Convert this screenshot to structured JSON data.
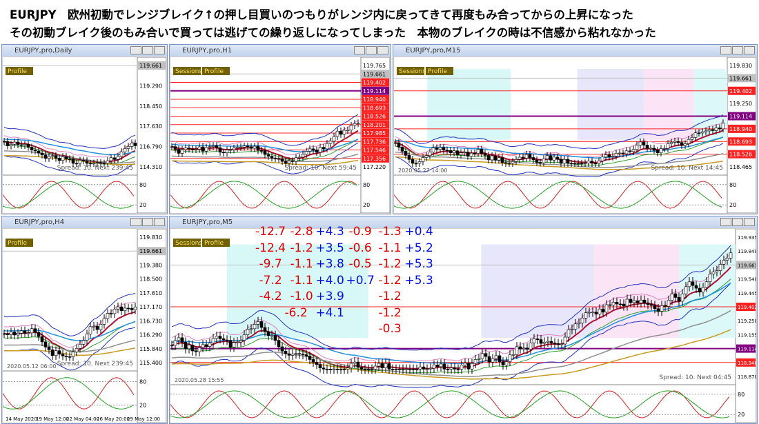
{
  "header": {
    "lines": [
      "EURJPY　欧州初動でレンジブレイク↑の押し目買いのつもりがレンジ内に戻ってきて再度もみ合ってからの上昇になった",
      "その初動ブレイク後のもみ合いで買っては逃げての繰り返しになってしまった　本物のブレイクの時は不信感から粘れなかった"
    ]
  },
  "windows": [
    {
      "title": "EURJPY,pro,Daily",
      "buttons": [
        "Profile"
      ],
      "prices": [
        {
          "text": "119.661",
          "style": "current"
        },
        {
          "text": "119.290"
        },
        {
          "text": "118.450"
        },
        {
          "text": "117.630"
        },
        {
          "text": "116.790"
        },
        {
          "text": "114.310"
        }
      ],
      "spread": "Spread: 10. Next 239:45",
      "levels": [
        "80",
        "20"
      ]
    },
    {
      "title": "EURJPY,pro,H1",
      "buttons": [
        "Sessions",
        "Profile"
      ],
      "prices": [
        {
          "text": "119.765"
        },
        {
          "text": "119.661",
          "style": "current"
        },
        {
          "text": "119.402",
          "style": "red"
        },
        {
          "text": "119.114",
          "style": "purple"
        },
        {
          "text": "118.940",
          "style": "red"
        },
        {
          "text": "118.693",
          "style": "red"
        },
        {
          "text": "118.526",
          "style": "red"
        },
        {
          "text": "118.201",
          "style": "red"
        },
        {
          "text": "117.985",
          "style": "red"
        },
        {
          "text": "117.736",
          "style": "red"
        },
        {
          "text": "117.546",
          "style": "red"
        },
        {
          "text": "117.356",
          "style": "red"
        },
        {
          "text": "117.220"
        }
      ],
      "spread": "Spread: 10. Next 59:45",
      "levels": [
        "80",
        "20"
      ]
    },
    {
      "title": "EURJPY,pro,M15",
      "buttons": [
        "Sessions",
        "Profile"
      ],
      "prices": [
        {
          "text": "119.830"
        },
        {
          "text": "119.661",
          "style": "current"
        },
        {
          "text": "119.402",
          "style": "red"
        },
        {
          "text": "119.250"
        },
        {
          "text": "119.114",
          "style": "purple"
        },
        {
          "text": "118.940",
          "style": "red"
        },
        {
          "text": "118.693",
          "style": "red"
        },
        {
          "text": "118.526",
          "style": "red"
        },
        {
          "text": "118.465"
        }
      ],
      "spread": "Spread: 10. Next 14:45",
      "date": "2020.05.27 14:00",
      "levels": [
        "80",
        "20"
      ]
    },
    {
      "title": "EURJPY,pro,H4",
      "buttons": [
        "Profile"
      ],
      "prices": [
        {
          "text": "119.830"
        },
        {
          "text": "119.661",
          "style": "current"
        },
        {
          "text": "119.380"
        },
        {
          "text": "118.500"
        },
        {
          "text": "117.610"
        },
        {
          "text": "117.170"
        },
        {
          "text": "116.730"
        },
        {
          "text": "116.290"
        },
        {
          "text": "115.840"
        },
        {
          "text": "115.400"
        }
      ],
      "spread": "Spread: 10. Next 239:45",
      "date": "2020.05.12 06:00",
      "xlabels": [
        "14 May 2020",
        "19 May 12:00",
        "22 May 04:00",
        "26 May 20:00",
        "29 May 12:00"
      ],
      "levels": [
        "80",
        "20"
      ]
    },
    {
      "title": "EURJPY,pro,M5",
      "buttons": [
        "Sessions",
        "Profile"
      ],
      "prices": [
        {
          "text": "119.935"
        },
        {
          "text": "119.840"
        },
        {
          "text": "119.661",
          "style": "current"
        },
        {
          "text": "119.540"
        },
        {
          "text": "119.445"
        },
        {
          "text": "119.402",
          "style": "red"
        },
        {
          "text": "119.250"
        },
        {
          "text": "119.155"
        },
        {
          "text": "119.114",
          "style": "purple"
        },
        {
          "text": "118.940",
          "style": "red"
        },
        {
          "text": "118.870"
        }
      ],
      "spread": "Spread: 10. Next 04:45",
      "date": "2020.05.28 15:55",
      "levels": [
        "80",
        "20"
      ]
    }
  ],
  "notes": {
    "rows": [
      [
        "-12.7",
        "-2.8",
        "+4.3",
        "-0.9",
        "-1.3",
        "+0.4"
      ],
      [
        "-12.4",
        "-1.2",
        "+3.5",
        "-0.6",
        "-1.1",
        "+5.2"
      ],
      [
        "-9.7",
        "-1.1",
        "+3.8",
        "-0.5",
        "-1.2",
        "+5.3"
      ],
      [
        "-7.2",
        "-1.1",
        "+4.0",
        "+0.7",
        "-1.2",
        "+5.3"
      ],
      [
        "-4.2",
        "-1.0",
        "+3.9",
        null,
        "-1.2",
        null
      ],
      [
        null,
        "-6.2",
        "+4.1",
        null,
        "-1.2",
        null
      ],
      [
        null,
        null,
        null,
        null,
        "-0.3",
        null
      ]
    ],
    "colors": {
      "-": "#e00000",
      "+": "#0010e0"
    }
  }
}
